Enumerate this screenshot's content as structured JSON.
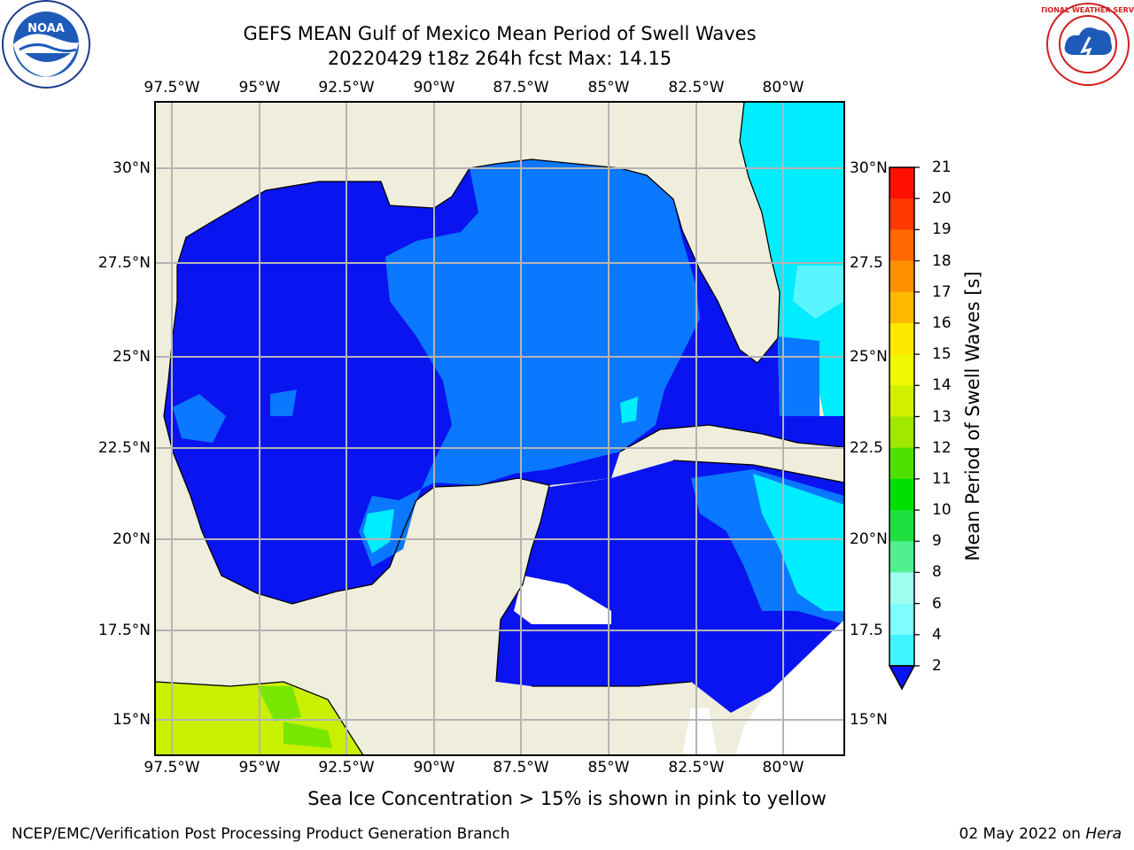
{
  "title": {
    "line1": "GEFS MEAN Gulf of Mexico Mean Period of Swell Waves",
    "line2": "20220429 t18z 264h fcst   Max: 14.15"
  },
  "map": {
    "lon_labels": [
      "97.5°W",
      "95°W",
      "92.5°W",
      "90°W",
      "87.5°W",
      "85°W",
      "82.5°W",
      "80°W"
    ],
    "lat_labels_left": [
      "30°N",
      "27.5°N",
      "25°N",
      "22.5°N",
      "20°N",
      "17.5°N",
      "15°N"
    ],
    "lat_labels_right": [
      "30°N",
      "27.5",
      "25°N",
      "22.5",
      "20°N",
      "17.5",
      "15°N"
    ],
    "colors": {
      "land": "#efeedd",
      "ocean_dark": "#0a14f0",
      "ocean_mid": "#0a78ff",
      "cyan": "#00ecff",
      "lightcyan": "#5af5ff",
      "yellowgreen": "#c8f000",
      "green": "#78e600",
      "grid": "#b4b4b4"
    }
  },
  "colorbar": {
    "title": "Mean Period of Swell Waves [s]",
    "ticks": [
      "2",
      "4",
      "6",
      "8",
      "9",
      "10",
      "11",
      "12",
      "13",
      "14",
      "15",
      "16",
      "17",
      "18",
      "19",
      "20",
      "21"
    ],
    "colors": [
      "#0a78ff",
      "#00ecff",
      "#40f5ff",
      "#80fbff",
      "#a0fff0",
      "#50f090",
      "#20e040",
      "#00e000",
      "#50e000",
      "#a0e800",
      "#d0f000",
      "#f0f800",
      "#ffe800",
      "#ffb800",
      "#ff9000",
      "#ff6800",
      "#ff3800",
      "#ff1000"
    ]
  },
  "note": "Sea Ice Concentration > 15% is shown in pink to yellow",
  "footer": {
    "left": "NCEP/EMC/Verification Post Processing Product Generation Branch",
    "date": "02 May 2022 on",
    "host": "Hera"
  },
  "logos": {
    "left": "NOAA",
    "right": "NATIONAL WEATHER SERVICE"
  }
}
